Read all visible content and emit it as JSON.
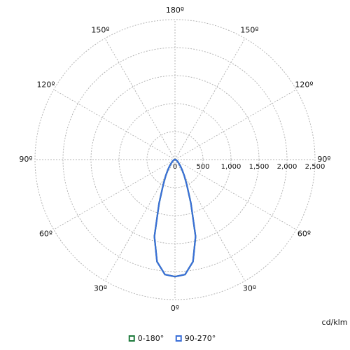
{
  "chart_data": {
    "type": "polar",
    "unit_label": "cd/klm",
    "rlim": [
      0,
      2500
    ],
    "rticks": [
      0,
      500,
      {
        "value": 1000,
        "label": "1,000"
      },
      {
        "value": 1500,
        "label": "1,500"
      },
      {
        "value": 2000,
        "label": "2,000"
      },
      {
        "value": 2500,
        "label": "2,500"
      }
    ],
    "angle_ticks": [
      {
        "value": 0,
        "label": "0º"
      },
      {
        "value": 30,
        "label": "30º"
      },
      {
        "value": 60,
        "label": "60º"
      },
      {
        "value": 90,
        "label": "90º"
      },
      {
        "value": 120,
        "label": "120º"
      },
      {
        "value": 150,
        "label": "150º"
      },
      {
        "value": 180,
        "label": "180º"
      },
      {
        "value": -30,
        "label": "30º"
      },
      {
        "value": -60,
        "label": "60º"
      },
      {
        "value": -90,
        "label": "90º"
      },
      {
        "value": -120,
        "label": "120º"
      },
      {
        "value": -150,
        "label": "150º"
      }
    ],
    "x": [
      -90,
      -85,
      -80,
      -75,
      -70,
      -65,
      -60,
      -55,
      -50,
      -45,
      -40,
      -35,
      -30,
      -25,
      -20,
      -15,
      -10,
      -5,
      0,
      5,
      10,
      15,
      20,
      25,
      30,
      35,
      40,
      45,
      50,
      55,
      60,
      65,
      70,
      75,
      80,
      85,
      90
    ],
    "series": [
      {
        "name": "0-180°",
        "color": "#1e7a3c",
        "values": [
          10,
          12,
          15,
          20,
          25,
          32,
          40,
          55,
          70,
          100,
          150,
          220,
          330,
          500,
          830,
          1420,
          1850,
          2060,
          2090,
          2060,
          1850,
          1420,
          830,
          500,
          330,
          220,
          150,
          100,
          70,
          55,
          40,
          32,
          25,
          20,
          15,
          12,
          10
        ]
      },
      {
        "name": "90-270°",
        "color": "#3a6fd8",
        "values": [
          10,
          12,
          15,
          20,
          25,
          32,
          40,
          55,
          70,
          100,
          150,
          220,
          330,
          500,
          830,
          1420,
          1850,
          2060,
          2090,
          2060,
          1850,
          1420,
          830,
          500,
          330,
          220,
          150,
          100,
          70,
          55,
          40,
          32,
          25,
          20,
          15,
          12,
          10
        ]
      }
    ]
  }
}
